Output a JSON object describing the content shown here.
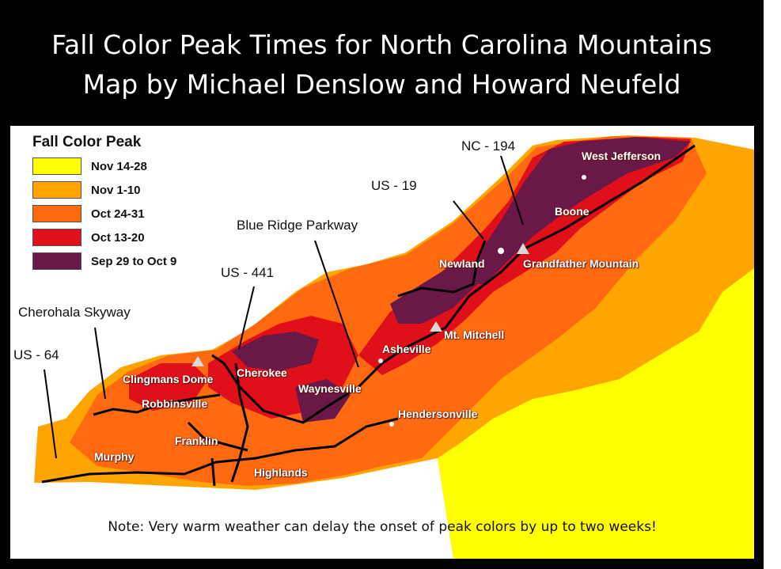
{
  "title": {
    "line1": "Fall Color Peak Times for North Carolina Mountains",
    "line2": "Map by Michael Denslow and Howard Neufeld"
  },
  "legend": {
    "title": "Fall Color Peak",
    "items": [
      {
        "label": "Nov 14-28",
        "color": "#ffff00"
      },
      {
        "label": "Nov 1-10",
        "color": "#ffa500"
      },
      {
        "label": "Oct 24-31",
        "color": "#ff6a10"
      },
      {
        "label": "Oct 13-20",
        "color": "#e0101a"
      },
      {
        "label": "Sep 29 to Oct 9",
        "color": "#6a1848"
      }
    ]
  },
  "annotations": {
    "nc194": "NC - 194",
    "us19": "US - 19",
    "blue_ridge": "Blue Ridge Parkway",
    "us441": "US - 441",
    "cherohala": "Cherohala Skyway",
    "us64": "US - 64"
  },
  "places": {
    "west_jefferson": "West Jefferson",
    "boone": "Boone",
    "newland": "Newland",
    "grandfather": "Grandfather Mountain",
    "mt_mitchell": "Mt. Mitchell",
    "asheville": "Asheville",
    "cherokee": "Cherokee",
    "waynesville": "Waynesville",
    "clingmans": "Clingmans Dome",
    "robbinsville": "Robbinsville",
    "hendersonville": "Hendersonville",
    "franklin": "Franklin",
    "murphy": "Murphy",
    "highlands": "Highlands"
  },
  "note": "Note: Very warm weather can delay the onset of peak colors by up to two weeks!"
}
